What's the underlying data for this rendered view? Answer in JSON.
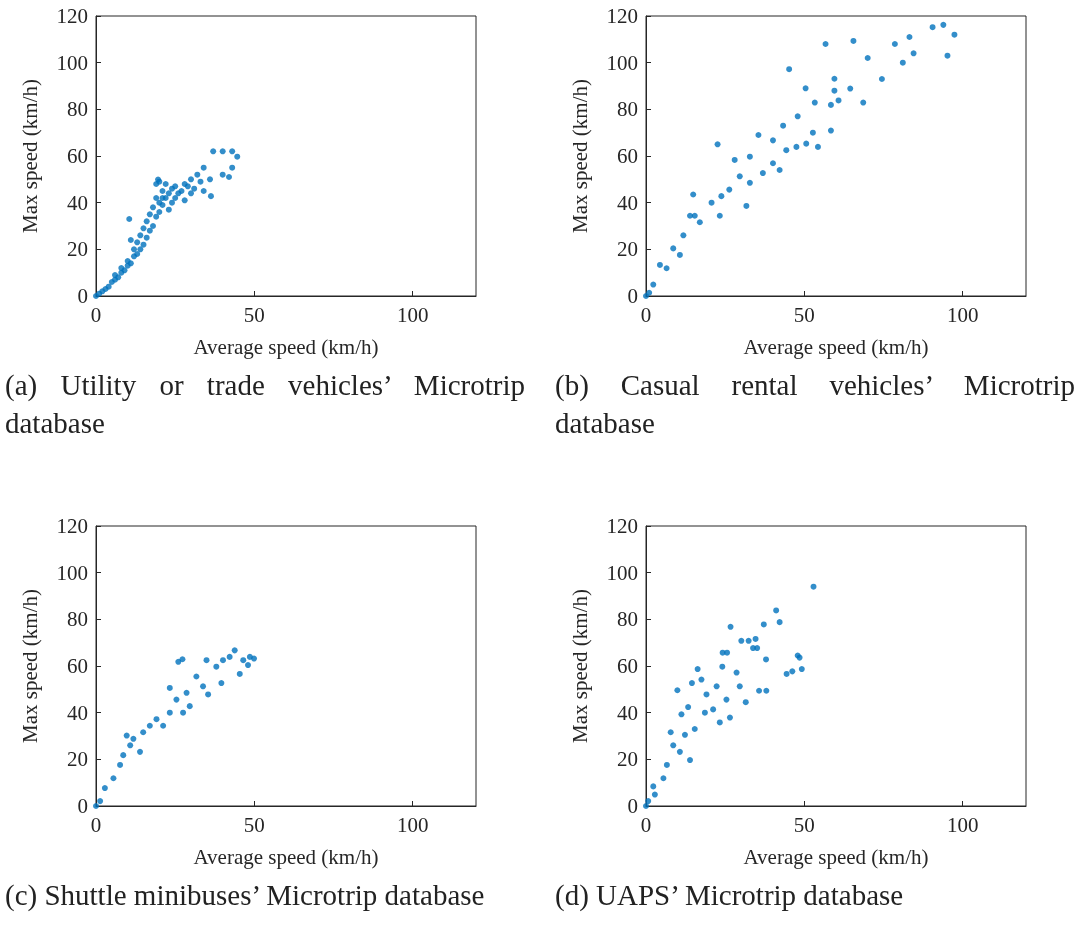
{
  "chart_data": [
    {
      "type": "scatter",
      "title": "(a) Utility or trade vehicles’ Microtrip database",
      "xlabel": "Average speed (km/h)",
      "ylabel": "Max speed (km/h)",
      "xlim": [
        0,
        120
      ],
      "ylim": [
        0,
        120
      ],
      "xticks": [
        0,
        50,
        100
      ],
      "yticks": [
        0,
        20,
        40,
        60,
        80,
        100,
        120
      ],
      "grid": false,
      "marker": "circle",
      "series": [
        {
          "color": "#0072bd",
          "x": [
            0,
            1,
            2,
            3,
            4,
            5,
            6,
            6,
            7,
            8,
            8,
            9,
            10,
            10,
            11,
            12,
            12,
            13,
            13,
            14,
            14,
            15,
            15,
            16,
            16,
            17,
            17,
            18,
            18,
            19,
            19,
            20,
            20,
            21,
            21,
            22,
            22,
            23,
            23,
            24,
            24,
            25,
            25,
            26,
            27,
            28,
            28,
            29,
            30,
            30,
            31,
            32,
            33,
            34,
            34,
            36,
            37,
            40,
            40,
            43,
            44.6,
            43,
            42,
            10.5,
            19.6,
            36.3,
            11,
            21,
            19,
            20
          ],
          "values": [
            0,
            1,
            2,
            3,
            4,
            6,
            7,
            9,
            8,
            10,
            12,
            11,
            13,
            15,
            14,
            17,
            20,
            18,
            23,
            20,
            26,
            22,
            29,
            25,
            32,
            28,
            35,
            30,
            38,
            34,
            42,
            36,
            40,
            39,
            45,
            42,
            48,
            37,
            44,
            40,
            46,
            42,
            47,
            44,
            45,
            41,
            48,
            47,
            44,
            50,
            46,
            52,
            49,
            55,
            45,
            50,
            62,
            62,
            52,
            62,
            59.7,
            55,
            51,
            33,
            49.9,
            42.8,
            24,
            42,
            48,
            49
          ]
        }
      ]
    },
    {
      "type": "scatter",
      "title": "(b) Casual rental vehicles’ Microtrip database",
      "xlabel": "Average speed (km/h)",
      "ylabel": "Max speed (km/h)",
      "xlim": [
        0,
        120
      ],
      "ylim": [
        0,
        120
      ],
      "xticks": [
        0,
        50,
        100
      ],
      "yticks": [
        0,
        20,
        40,
        60,
        80,
        100,
        120
      ],
      "grid": false,
      "marker": "circle",
      "series": [
        {
          "color": "#0072bd",
          "x": [
            0,
            1,
            2.3,
            4.4,
            6.5,
            8.6,
            10.7,
            11.8,
            13.9,
            14.9,
            15.4,
            17,
            20.7,
            22.6,
            23.3,
            23.8,
            26.3,
            28,
            29.6,
            31.7,
            32.8,
            32.8,
            35.5,
            36.9,
            40.1,
            40.1,
            42.2,
            43.3,
            44.3,
            45.2,
            47.5,
            47.9,
            50.4,
            50.6,
            52.7,
            53.3,
            54.3,
            56.7,
            58.4,
            58.4,
            59.5,
            59.5,
            60.8,
            64.5,
            65.5,
            68.6,
            70,
            74.5,
            78.6,
            81.1,
            83.2,
            84.5,
            90.5,
            93.9,
            95.2,
            97.4
          ],
          "values": [
            0,
            1.4,
            4.9,
            13.3,
            11.9,
            20.4,
            17.6,
            26,
            34.4,
            43.5,
            34.4,
            31.6,
            40,
            65,
            34.4,
            42.8,
            45.6,
            58.3,
            51.3,
            38.6,
            48.5,
            59.7,
            69,
            52.7,
            56.9,
            66.7,
            54,
            73,
            62.5,
            97.2,
            63.9,
            77,
            89,
            65.3,
            70,
            82.9,
            63.9,
            108,
            81.9,
            70.9,
            93.1,
            88,
            83.8,
            88.9,
            109.3,
            82.9,
            102,
            93,
            108,
            100,
            111,
            104,
            115.2,
            116.2,
            103,
            112
          ]
        }
      ]
    },
    {
      "type": "scatter",
      "title": "(c) Shuttle minibuses’ Microtrip database",
      "xlabel": "Average speed (km/h)",
      "ylabel": "Max speed (km/h)",
      "xlim": [
        0,
        120
      ],
      "ylim": [
        0,
        120
      ],
      "xticks": [
        0,
        50,
        100
      ],
      "yticks": [
        0,
        20,
        40,
        60,
        80,
        100,
        120
      ],
      "grid": false,
      "marker": "circle",
      "series": [
        {
          "color": "#0072bd",
          "x": [
            0,
            1.3,
            2.8,
            5.5,
            7.6,
            8.6,
            9.7,
            10.8,
            11.8,
            13.9,
            14.9,
            17,
            19.1,
            21.2,
            23.3,
            23.3,
            26,
            27.3,
            25.4,
            27.5,
            28.6,
            29.6,
            31.7,
            33.8,
            35.4,
            34.9,
            38,
            39.6,
            40.1,
            42.2,
            43.8,
            45.4,
            46.5,
            48.6,
            49.9,
            48
          ],
          "values": [
            0,
            2.1,
            7.7,
            11.9,
            17.6,
            21.8,
            30.2,
            26,
            28.8,
            23.2,
            31.6,
            34.4,
            37.2,
            34.4,
            40,
            50.6,
            61.8,
            62.9,
            45.6,
            40,
            48.5,
            42.8,
            55.5,
            51.3,
            47.8,
            62.5,
            59.7,
            52.7,
            62.5,
            63.9,
            66.7,
            56.6,
            62.5,
            63.9,
            63.2,
            60.4
          ]
        }
      ]
    },
    {
      "type": "scatter",
      "title": "(d) UAPS’ Microtrip database",
      "xlabel": "Average speed (km/h)",
      "ylabel": "Max speed (km/h)",
      "xlim": [
        0,
        120
      ],
      "ylim": [
        0,
        120
      ],
      "xticks": [
        0,
        50,
        100
      ],
      "yticks": [
        0,
        20,
        40,
        60,
        80,
        100,
        120
      ],
      "grid": false,
      "marker": "circle",
      "series": [
        {
          "color": "#0072bd",
          "x": [
            0,
            0.7,
            2.8,
            2.3,
            5.5,
            6.6,
            7.8,
            8.6,
            10.7,
            11.2,
            12.3,
            13.3,
            13.9,
            14.5,
            15.4,
            16.3,
            17.5,
            18.6,
            19.1,
            21.2,
            22.3,
            23.3,
            24.1,
            24.2,
            25.4,
            25.6,
            26.5,
            26.7,
            28.6,
            29.6,
            30.1,
            31.5,
            32.4,
            33.8,
            34.6,
            35.1,
            35.7,
            37.2,
            37.9,
            38,
            41.1,
            42.2,
            44.4,
            46.2,
            47.9,
            48.5,
            49.2,
            52.9,
            9.9
          ],
          "values": [
            0,
            2.1,
            4.9,
            8.4,
            11.9,
            17.6,
            31.6,
            26,
            23.2,
            39.3,
            30.5,
            42.4,
            19.7,
            52.7,
            33,
            58.7,
            54.2,
            40,
            47.8,
            41.4,
            51.3,
            35.8,
            59.7,
            65.7,
            45.6,
            65.7,
            37.9,
            76.8,
            57.2,
            51.3,
            70.8,
            44.5,
            70.8,
            67.7,
            71.6,
            67.7,
            49.4,
            77.8,
            62.8,
            49.4,
            83.8,
            78.8,
            56.6,
            57.7,
            64.5,
            63.6,
            58.7,
            94,
            49.6
          ]
        }
      ]
    }
  ]
}
